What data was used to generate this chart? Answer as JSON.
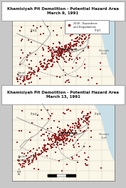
{
  "title1": "Khamisiyah Pit Demolition - Potential Hazard Area\nMarch 9, 1991",
  "title2": "Khamisiyah Pit Demolition - Potential Hazard Area\nMarch 13, 1991",
  "map_bg": "#faf6e8",
  "water_color": "#c8dfe8",
  "dot_color": "#8b1a1a",
  "grid_color": "#d0cbb8",
  "fig_bg": "#c8c8c8",
  "scale_bar_color": "#111111",
  "road_color": "#888888",
  "border_color": "#999999",
  "legend_text": "2000 - Depositions\nand Degradations",
  "text_color": "#333333",
  "title_fontsize": 4.0,
  "label_fontsize": 3.5
}
